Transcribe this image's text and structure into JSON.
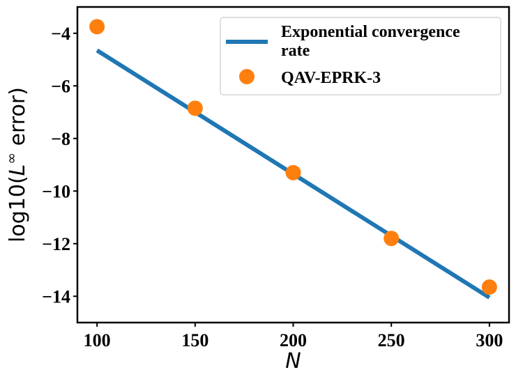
{
  "chart_data": {
    "type": "line",
    "xlabel": "N",
    "ylabel_parts": {
      "pre": "log10(",
      "italic": "L",
      "sup": "∞",
      "post": " error)"
    },
    "xlim": [
      90,
      310
    ],
    "ylim": [
      -15,
      -3
    ],
    "xticks": [
      100,
      150,
      200,
      250,
      300
    ],
    "yticks": [
      -4,
      -6,
      -8,
      -10,
      -12,
      -14
    ],
    "ytick_labels": [
      "−4",
      "−6",
      "−8",
      "−10",
      "−12",
      "−14"
    ],
    "grid": false,
    "legend_position": "top-right",
    "series": [
      {
        "name": "Exponential convergence\n rate",
        "kind": "line",
        "color": "#1f77b4",
        "x": [
          100,
          300
        ],
        "y": [
          -4.65,
          -14.05
        ]
      },
      {
        "name": "QAV-EPRK-3",
        "kind": "scatter",
        "color": "#ff7f0e",
        "x": [
          100,
          150,
          200,
          250,
          300
        ],
        "y": [
          -3.75,
          -6.85,
          -9.3,
          -11.8,
          -13.65
        ]
      }
    ]
  }
}
